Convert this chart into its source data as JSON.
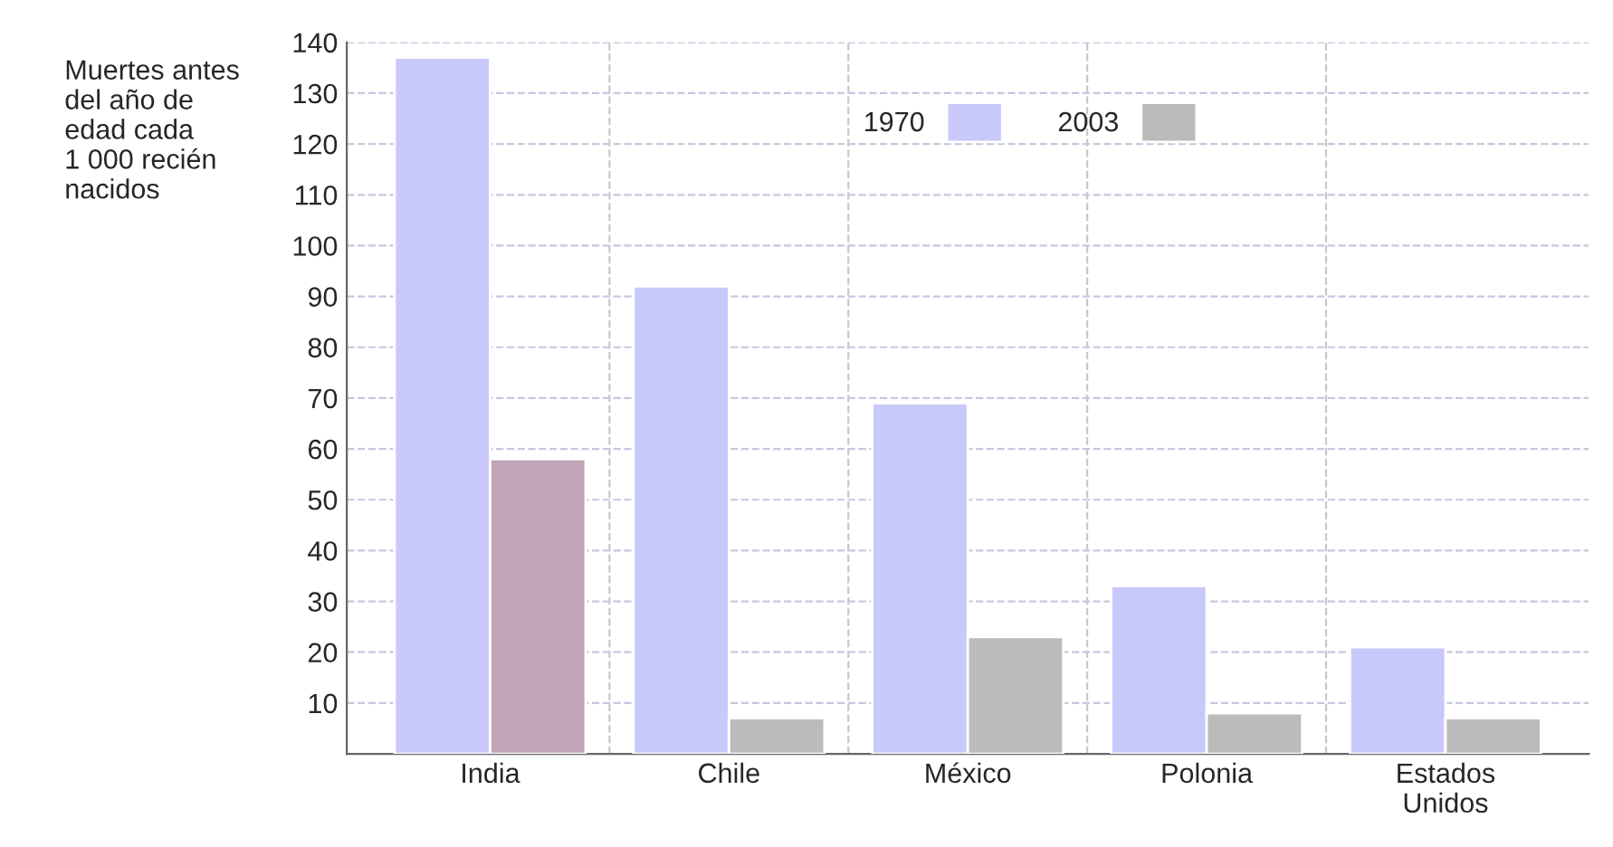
{
  "chart_data": {
    "type": "bar",
    "ylabel": "Muertes antes\ndel año de\nedad cada\n1 000 recién\nnacidos",
    "categories": [
      "India",
      "Chile",
      "México",
      "Polonia",
      "Estados\nUnidos"
    ],
    "series": [
      {
        "name": "1970",
        "color": "#c8c8fa",
        "values": [
          137,
          92,
          69,
          33,
          21
        ]
      },
      {
        "name": "2003",
        "color": "#bbbbbb",
        "colors": [
          "#c0a4b8",
          "#bbbbbb",
          "#bbbbbb",
          "#bbbbbb",
          "#bbbbbb"
        ],
        "values": [
          58,
          7,
          23,
          8,
          7
        ]
      }
    ],
    "ylim": [
      0,
      140
    ],
    "yticks": [
      10,
      20,
      30,
      40,
      50,
      60,
      70,
      80,
      90,
      100,
      110,
      120,
      130,
      140
    ],
    "grid": true,
    "legend": "top"
  }
}
